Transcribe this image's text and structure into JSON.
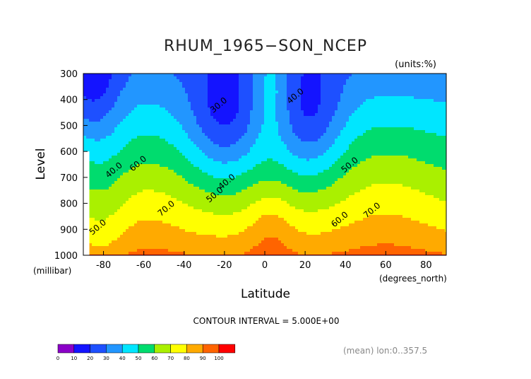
{
  "chart_data": {
    "type": "heatmap",
    "title": "RHUM_1965−SON_NCEP",
    "units": "(units:%)",
    "xlabel": "Latitude",
    "ylabel": "Level",
    "x_unit": "(degrees_north)",
    "y_unit": "(millibar)",
    "xlim": [
      -90,
      90
    ],
    "ylim": [
      1000,
      300
    ],
    "x_ticks": [
      "-80",
      "-60",
      "-40",
      "-20",
      "0",
      "20",
      "40",
      "60",
      "80"
    ],
    "x_tick_values": [
      -80,
      -60,
      -40,
      -20,
      0,
      20,
      40,
      60,
      80
    ],
    "y_ticks": [
      "300",
      "400",
      "500",
      "600",
      "700",
      "800",
      "900",
      "1000"
    ],
    "y_tick_values": [
      300,
      400,
      500,
      600,
      700,
      800,
      900,
      1000
    ],
    "contour_interval": "CONTOUR INTERVAL = 5.000E+00",
    "footnote": "(mean) lon:0..357.5",
    "levels_filled": [
      0,
      10,
      20,
      30,
      40,
      50,
      60,
      70,
      80,
      90,
      100
    ],
    "colorbar": {
      "labels": [
        "0",
        "10",
        "20",
        "30",
        "40",
        "50",
        "60",
        "70",
        "80",
        "90",
        "100"
      ],
      "colors": [
        "#8b00c8",
        "#1414ff",
        "#1e50ff",
        "#2296ff",
        "#00e6ff",
        "#00dc6e",
        "#aaf000",
        "#ffff00",
        "#ffaa00",
        "#ff6400",
        "#ff0000"
      ]
    },
    "contour_labels": [
      {
        "text": "30.0",
        "lat": -22,
        "level": 430
      },
      {
        "text": "40.0",
        "lat": 16,
        "level": 395
      },
      {
        "text": "40.0",
        "lat": -74,
        "level": 680
      },
      {
        "text": "60.0",
        "lat": -62,
        "level": 655
      },
      {
        "text": "40.0",
        "lat": -18,
        "level": 725
      },
      {
        "text": "50.0",
        "lat": -24,
        "level": 775
      },
      {
        "text": "70.0",
        "lat": -48,
        "level": 828
      },
      {
        "text": "60.0",
        "lat": 38,
        "level": 870
      },
      {
        "text": "50.0",
        "lat": 43,
        "level": 660
      },
      {
        "text": "70.0",
        "lat": 54,
        "level": 835
      },
      {
        "text": "50.0",
        "lat": -82,
        "level": 900
      }
    ],
    "field_description_points": [
      {
        "lat": -90,
        "level": 300,
        "value": 8
      },
      {
        "lat": -20,
        "level": 500,
        "value": 25
      },
      {
        "lat": 22,
        "level": 500,
        "value": 27
      },
      {
        "lat": 2,
        "level": 300,
        "value": 58
      },
      {
        "lat": 88,
        "level": 300,
        "value": 30
      },
      {
        "lat": -60,
        "level": 1000,
        "value": 88
      },
      {
        "lat": 60,
        "level": 1000,
        "value": 88
      },
      {
        "lat": 0,
        "level": 1000,
        "value": 82
      }
    ]
  }
}
